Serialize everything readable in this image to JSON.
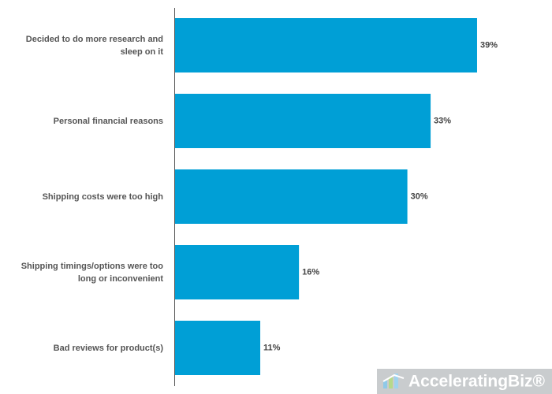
{
  "chart_data": {
    "type": "bar",
    "orientation": "horizontal",
    "categories": [
      "Decided to do more research and sleep on it",
      "Personal financial reasons",
      "Shipping costs were too high",
      "Shipping timings/options were too long or inconvenient",
      "Bad reviews for product(s)"
    ],
    "values": [
      39,
      33,
      30,
      16,
      11
    ],
    "value_labels": [
      "39%",
      "33%",
      "30%",
      "16%",
      "11%"
    ],
    "color": "#009fd6",
    "watermark": "AcceleratingBiz®"
  }
}
